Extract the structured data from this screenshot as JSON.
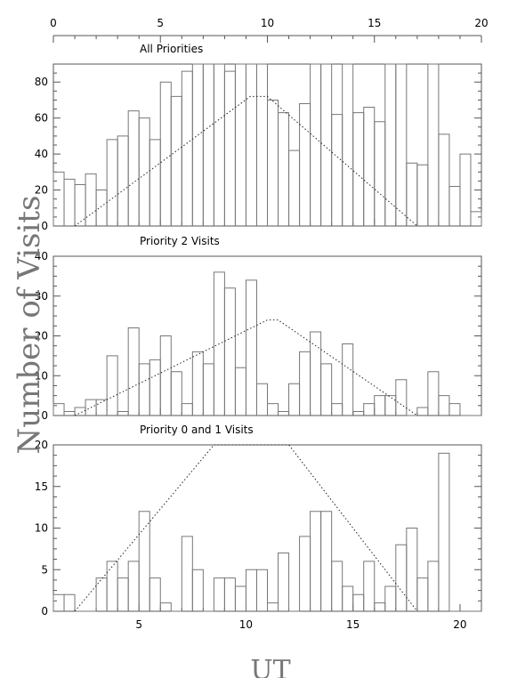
{
  "chart_data": {
    "type": "histogram",
    "xlabel": "UT",
    "ylabel": "Number of Visits",
    "top_axis": {
      "ticks": [
        0,
        5,
        10,
        15,
        20
      ],
      "range": [
        0,
        20
      ]
    },
    "panels": [
      {
        "id": "all",
        "title": "All Priorities",
        "ylim": [
          0,
          90
        ],
        "yticks": [
          0,
          20,
          40,
          60,
          80
        ],
        "xlim": [
          0,
          20
        ],
        "bin_edges": [
          0,
          0.5,
          1,
          1.5,
          2,
          2.5,
          3,
          3.5,
          4,
          4.5,
          5,
          5.5,
          6,
          6.5,
          7,
          7.5,
          8,
          8.5,
          9,
          9.5,
          10,
          10.5,
          11,
          11.5,
          12,
          12.5,
          13,
          13.5,
          14,
          14.5,
          15,
          15.5,
          16,
          16.5,
          17,
          17.5,
          18,
          18.5,
          19,
          19.5,
          20
        ],
        "values": [
          30,
          26,
          23,
          29,
          20,
          48,
          50,
          64,
          60,
          48,
          80,
          72,
          86,
          90,
          90,
          90,
          86,
          90,
          90,
          90,
          70,
          63,
          42,
          68,
          90,
          90,
          62,
          90,
          63,
          66,
          58,
          90,
          90,
          35,
          34,
          90,
          51,
          22,
          40,
          8
        ],
        "expected": {
          "x": [
            1,
            9.2,
            10,
            17
          ],
          "y": [
            0,
            72,
            72,
            0
          ]
        }
      },
      {
        "id": "p2",
        "title": "Priority 2 Visits",
        "ylim": [
          0,
          40
        ],
        "yticks": [
          0,
          10,
          20,
          30,
          40
        ],
        "xlim": [
          0,
          20
        ],
        "bin_edges": [
          0,
          0.5,
          1,
          1.5,
          2,
          2.5,
          3,
          3.5,
          4,
          4.5,
          5,
          5.5,
          6,
          6.5,
          7,
          7.5,
          8,
          8.5,
          9,
          9.5,
          10,
          10.5,
          11,
          11.5,
          12,
          12.5,
          13,
          13.5,
          14,
          14.5,
          15,
          15.5,
          16,
          16.5,
          17,
          17.5,
          18,
          18.5,
          19,
          19.5,
          20
        ],
        "values": [
          3,
          1,
          2,
          4,
          4,
          15,
          1,
          22,
          13,
          14,
          20,
          11,
          3,
          16,
          13,
          36,
          32,
          12,
          34,
          8,
          3,
          1,
          8,
          16,
          21,
          13,
          3,
          18,
          1,
          3,
          5,
          5,
          9,
          0,
          2,
          11,
          5,
          3,
          0,
          0
        ],
        "expected": {
          "x": [
            1,
            10,
            10.5,
            17
          ],
          "y": [
            0,
            24,
            24,
            0
          ]
        }
      },
      {
        "id": "p01",
        "title": "Priority 0 and 1 Visits",
        "ylim": [
          0,
          20
        ],
        "yticks": [
          0,
          5,
          10,
          15,
          20
        ],
        "xlim": [
          1,
          21
        ],
        "xticks": [
          5,
          10,
          15,
          20
        ],
        "bin_edges": [
          1,
          1.5,
          2,
          2.5,
          3,
          3.5,
          4,
          4.5,
          5,
          5.5,
          6,
          6.5,
          7,
          7.5,
          8,
          8.5,
          9,
          9.5,
          10,
          10.5,
          11,
          11.5,
          12,
          12.5,
          13,
          13.5,
          14,
          14.5,
          15,
          15.5,
          16,
          16.5,
          17,
          17.5,
          18,
          18.5,
          19,
          19.5,
          20,
          20.5,
          21
        ],
        "values": [
          2,
          2,
          0,
          0,
          4,
          6,
          4,
          6,
          12,
          4,
          1,
          0,
          9,
          5,
          0,
          4,
          4,
          3,
          5,
          5,
          1,
          7,
          0,
          9,
          12,
          12,
          6,
          3,
          2,
          6,
          1,
          3,
          8,
          10,
          4,
          6,
          19,
          0,
          0,
          0
        ],
        "expected": {
          "x": [
            2,
            8.5,
            12,
            18
          ],
          "y": [
            0,
            20,
            20,
            0
          ]
        }
      }
    ]
  }
}
